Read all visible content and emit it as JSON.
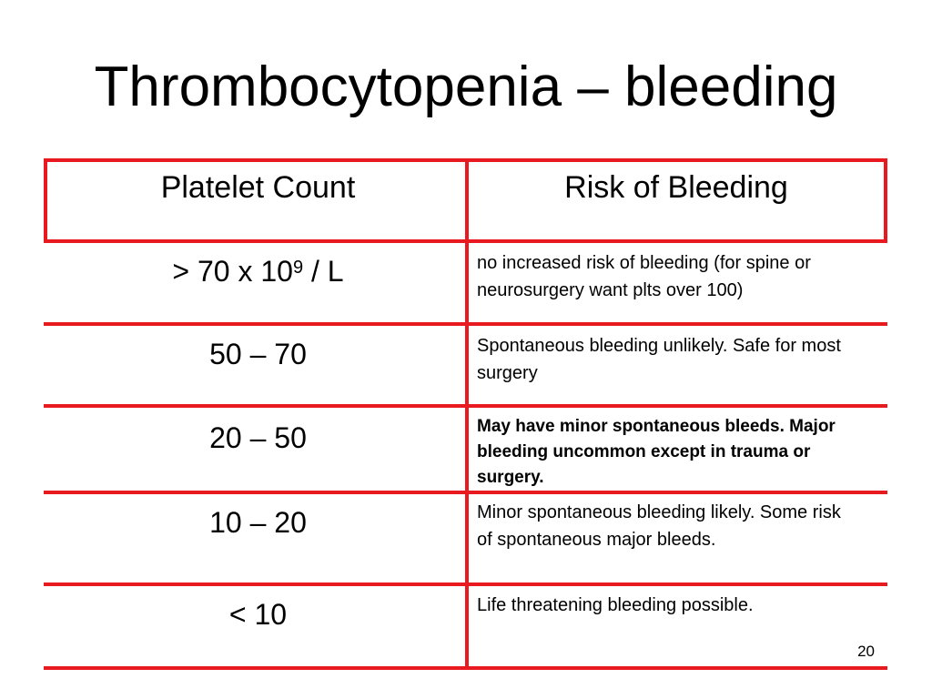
{
  "slide": {
    "title": "Thrombocytopenia – bleeding",
    "page_number": "20"
  },
  "table": {
    "headers": {
      "col1": "Platelet Count",
      "col2": "Risk of Bleeding"
    },
    "rows": [
      {
        "count_prefix": "> 70 x 10",
        "count_exponent": "9",
        "count_suffix": " / L",
        "risk": "no increased risk of bleeding (for spine or neurosurgery want plts over 100)"
      },
      {
        "count": "50 – 70",
        "risk": "Spontaneous bleeding unlikely.  Safe for most surgery"
      },
      {
        "count": "20 – 50",
        "risk": "May have minor spontaneous bleeds. Major bleeding uncommon except in trauma or surgery."
      },
      {
        "count": "10 – 20",
        "risk": "Minor spontaneous bleeding likely. Some risk of spontaneous major bleeds."
      },
      {
        "count": "< 10",
        "risk": "Life threatening bleeding possible."
      }
    ]
  },
  "colors": {
    "grid": "#e8191f",
    "text": "#000000",
    "background": "#ffffff"
  }
}
